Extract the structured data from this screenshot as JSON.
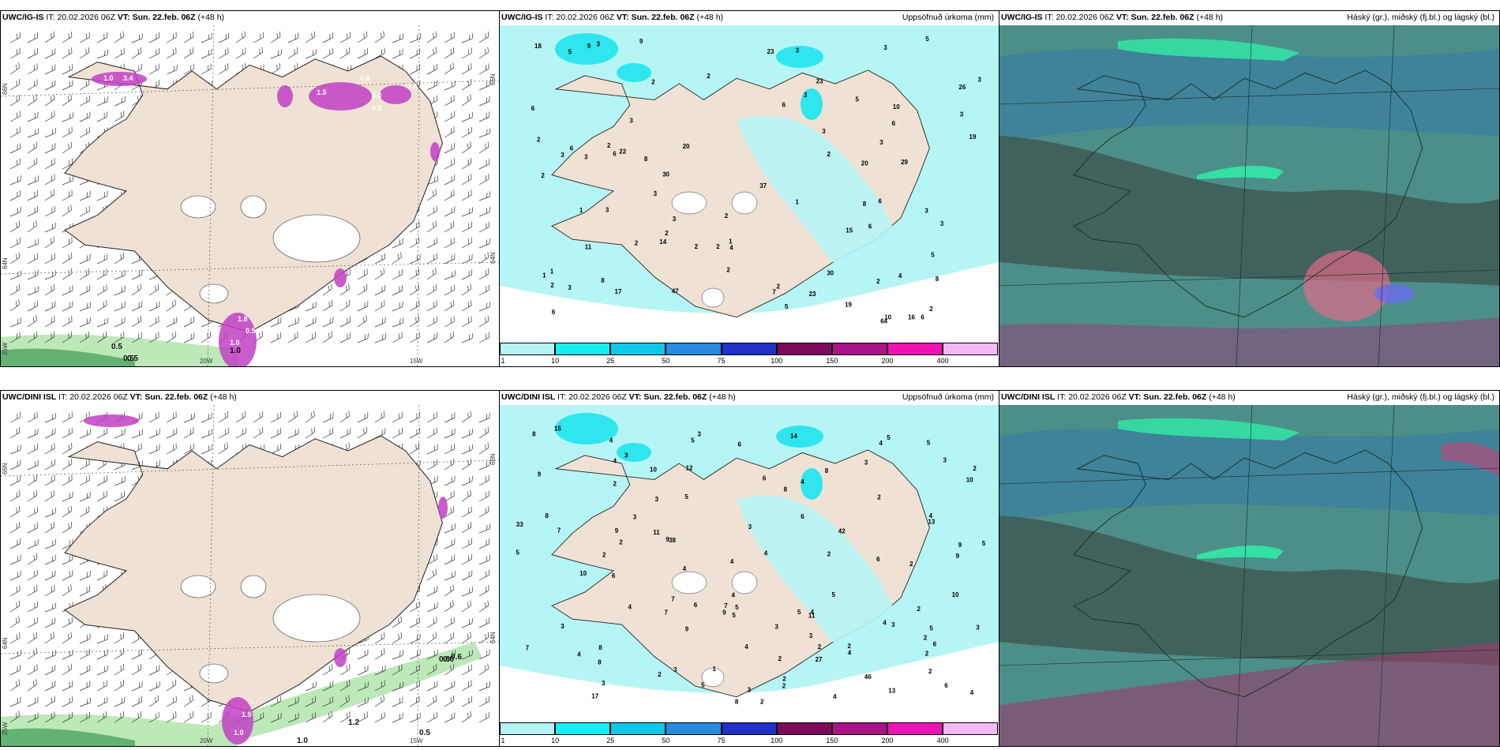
{
  "colors": {
    "land": "#efe2d4",
    "sea": "#ffffff",
    "precip_light": "#b6f5f5",
    "precip_cyan": "#2fe6ee",
    "magenta": "#c23fc4",
    "green_light": "#bde8b8",
    "green_dark": "#3e9a5a",
    "cloud_dark": "#3f5a55",
    "cloud_teal": "#4c8f88",
    "cloud_blue": "#3b7f9e",
    "cloud_mint": "#34e0a4"
  },
  "legend_colors": [
    "#b5f3f5",
    "#14f0f0",
    "#0fc8e8",
    "#2a8ae0",
    "#2230c8",
    "#7c0a5a",
    "#a81488",
    "#ee14b4",
    "#f4b8f4"
  ],
  "legend_ticks": [
    "1",
    "10",
    "25",
    "50",
    "75",
    "100",
    "150",
    "200",
    "400"
  ],
  "rows": [
    {
      "model": "UWC/IG-IS",
      "panel1": {
        "model": "UWC/IG-IS",
        "it_label": "IT:",
        "it_value": "20.02.2026 06Z",
        "vt_label": "VT:",
        "vt_value": "Sun. 22.feb. 06Z",
        "lead": "(+48 h)",
        "lat_labels": [
          "66N",
          "64N"
        ],
        "lat_labels_right": [
          "66N",
          "64N"
        ],
        "lon_labels": [
          "25W",
          "20W",
          "15W"
        ],
        "snow_values": [
          "3.4",
          "1.0",
          "0.8",
          "2.0",
          "3.4",
          "1.5",
          "0.5",
          "0.8",
          "0.5",
          "1.0",
          "1.8"
        ],
        "rain_values": [
          "0.5",
          "0.5",
          "0.5",
          "1.0"
        ]
      },
      "panel2": {
        "model": "UWC/IG-IS",
        "it_label": "IT:",
        "it_value": "20.02.2026 06Z",
        "vt_label": "VT:",
        "vt_value": "Sun. 22.feb. 06Z",
        "lead": "(+48 h)",
        "right_title": "Uppsöfnuð úrkoma (mm)",
        "station_values": [
          "2",
          "6",
          "9",
          "6",
          "6",
          "2",
          "2",
          "3",
          "14",
          "20",
          "29",
          "23",
          "18",
          "10",
          "30",
          "30",
          "37",
          "19",
          "26",
          "20",
          "16",
          "22",
          "23",
          "2",
          "4",
          "2",
          "7",
          "1",
          "10",
          "1",
          "2",
          "2",
          "3",
          "5",
          "5",
          "2",
          "6",
          "3",
          "3",
          "47",
          "2",
          "2",
          "3",
          "19",
          "4",
          "2",
          "1",
          "3",
          "9",
          "23",
          "5",
          "3",
          "1",
          "3",
          "3",
          "3",
          "17",
          "5",
          "11",
          "8",
          "3",
          "2",
          "6",
          "8",
          "2",
          "3",
          "5",
          "6",
          "15",
          "3",
          "1",
          "2",
          "2",
          "6",
          "8",
          "2",
          "3",
          "3",
          "3",
          "64",
          "8",
          "6",
          "6",
          "3"
        ]
      },
      "panel3": {
        "model": "UWC/IG-IS",
        "it_label": "IT:",
        "it_value": "20.02.2026 06Z",
        "vt_label": "VT:",
        "vt_value": "Sun. 22.feb. 06Z",
        "lead": "(+48 h)",
        "right_title": "Háský (gr.), miðský (fj.bl.) og lágský (bl.)"
      }
    },
    {
      "model": "UWC/DINI ISL",
      "panel1": {
        "model": "UWC/DINI ISL",
        "it_label": "IT:",
        "it_value": "20.02.2026 06Z",
        "vt_label": "VT:",
        "vt_value": "Sun. 22.feb. 06Z",
        "lead": "(+48 h)",
        "lat_labels": [
          "66N",
          "64N"
        ],
        "lat_labels_right": [
          "66N",
          "64N"
        ],
        "lon_labels": [
          "25W",
          "20W",
          "15W"
        ],
        "snow_values": [
          "1.5",
          "1.0"
        ],
        "rain_values": [
          "0.6",
          "0.6",
          "0.6",
          "1.0",
          "1.2",
          "0.5"
        ]
      },
      "panel2": {
        "model": "UWC/DINI ISL",
        "it_label": "IT:",
        "it_value": "20.02.2026 06Z",
        "vt_label": "VT:",
        "vt_value": "Sun. 22.feb. 06Z",
        "lead": "(+48 h)",
        "right_title": "Uppsöfnuð úrkoma (mm)",
        "station_values": [
          "2",
          "2",
          "4",
          "1",
          "2",
          "2",
          "3",
          "5",
          "2",
          "6",
          "3",
          "17",
          "42",
          "14",
          "4",
          "2",
          "10",
          "46",
          "4",
          "3",
          "4",
          "2",
          "4",
          "11",
          "12",
          "5",
          "5",
          "10",
          "4",
          "8",
          "2",
          "3",
          "2",
          "6",
          "8",
          "9",
          "5",
          "9",
          "3",
          "5",
          "4",
          "4",
          "3",
          "2",
          "3",
          "4",
          "4",
          "9",
          "10",
          "2",
          "3",
          "3",
          "5",
          "3",
          "8",
          "38",
          "2",
          "4",
          "2",
          "4",
          "3",
          "5",
          "4",
          "27",
          "6",
          "15",
          "3",
          "8",
          "9",
          "2",
          "7",
          "7",
          "7",
          "5",
          "4",
          "4",
          "3",
          "5",
          "2",
          "6",
          "4",
          "7",
          "2",
          "3",
          "2",
          "2",
          "5",
          "5",
          "13",
          "6",
          "4",
          "7",
          "6",
          "5",
          "8",
          "10",
          "11",
          "6",
          "33",
          "8",
          "9",
          "9",
          "13",
          "9",
          "6",
          "8",
          "3"
        ]
      },
      "panel3": {
        "model": "UWC/DINI ISL",
        "it_label": "IT:",
        "it_value": "20.02.2026 06Z",
        "vt_label": "VT:",
        "vt_value": "Sun. 22.feb. 06Z",
        "lead": "(+48 h)",
        "right_title": "Háský (gr.), miðský (fj.bl.) og lágský (bl.)"
      }
    }
  ]
}
